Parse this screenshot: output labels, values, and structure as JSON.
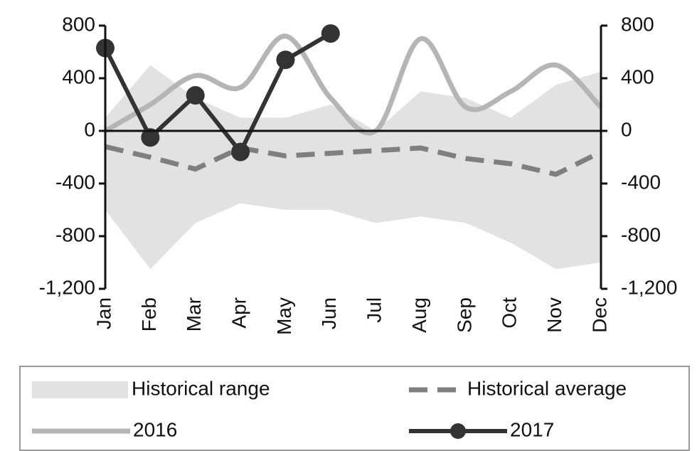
{
  "chart_data": {
    "type": "line",
    "categories": [
      "Jan",
      "Feb",
      "Mar",
      "Apr",
      "May",
      "Jun",
      "Jul",
      "Aug",
      "Sep",
      "Oct",
      "Nov",
      "Dec"
    ],
    "series": [
      {
        "name": "Historical range",
        "color": "#e2e2e2",
        "kind": "range",
        "high": [
          100,
          500,
          250,
          100,
          100,
          200,
          0,
          300,
          250,
          100,
          350,
          450
        ],
        "low": [
          -600,
          -1050,
          -700,
          -550,
          -600,
          -600,
          -700,
          -650,
          -700,
          -850,
          -1050,
          -1000
        ]
      },
      {
        "name": "Historical average",
        "color": "#7f7f7f",
        "style": "dashed",
        "values": [
          -120,
          -200,
          -290,
          -130,
          -190,
          -170,
          -150,
          -130,
          -210,
          -250,
          -330,
          -160
        ]
      },
      {
        "name": "2016",
        "color": "#b5b5b5",
        "smooth": true,
        "values": [
          0,
          200,
          420,
          330,
          720,
          250,
          0,
          700,
          180,
          300,
          500,
          180
        ]
      },
      {
        "name": "2017",
        "color": "#333333",
        "markers": true,
        "values": [
          630,
          -50,
          270,
          -160,
          540,
          740,
          null,
          null,
          null,
          null,
          null,
          null
        ]
      }
    ],
    "ylim": [
      -1200,
      800
    ],
    "yticks": [
      {
        "value": -1200,
        "label": "-1,200"
      },
      -800,
      -400,
      0,
      400,
      800
    ],
    "y2lim": [
      -1200,
      800
    ],
    "y2ticks": [
      {
        "value": -1200,
        "label": "-1,200"
      },
      -800,
      -400,
      0,
      400,
      800
    ],
    "legend": "bottom"
  }
}
